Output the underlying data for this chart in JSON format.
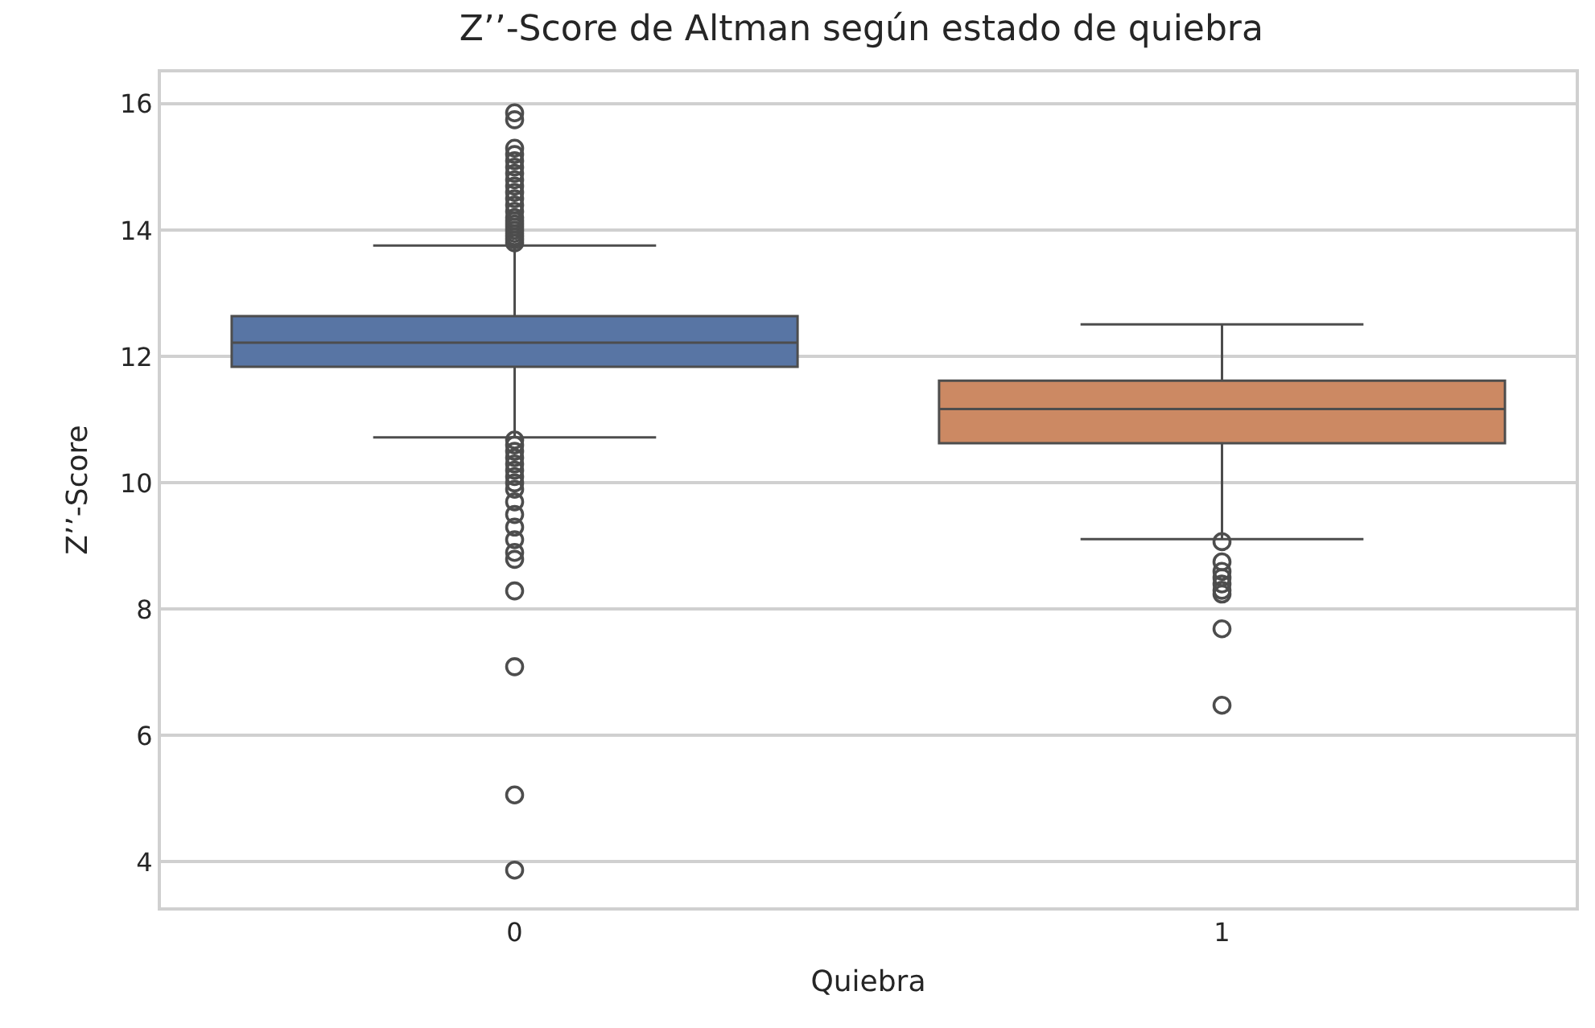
{
  "chart_data": {
    "type": "box",
    "title": "Z’’-Score de Altman según estado de quiebra",
    "xlabel": "Quiebra",
    "ylabel": "Z’’-Score",
    "categories": [
      "0",
      "1"
    ],
    "series": [
      {
        "color": "#5875a4",
        "boxes": [
          {
            "low": 10.72,
            "q1": 11.84,
            "median": 12.22,
            "q3": 12.64,
            "high": 13.76,
            "outliers": [
              13.8,
              13.85,
              13.9,
              13.95,
              14.0,
              14.05,
              14.1,
              14.15,
              14.2,
              14.3,
              14.4,
              14.5,
              14.6,
              14.7,
              14.8,
              14.9,
              15.0,
              15.1,
              15.2,
              15.3,
              15.75,
              15.86,
              10.68,
              10.6,
              10.5,
              10.4,
              10.3,
              10.2,
              10.1,
              10.0,
              9.9,
              9.7,
              9.5,
              9.3,
              9.1,
              8.9,
              8.79,
              8.29,
              7.09,
              5.06,
              3.87
            ]
          },
          null
        ]
      },
      {
        "color": "#cc8963",
        "boxes": [
          null,
          {
            "low": 9.11,
            "q1": 10.63,
            "median": 11.17,
            "q3": 11.62,
            "high": 12.51,
            "outliers": [
              9.07,
              8.75,
              8.6,
              8.5,
              8.4,
              8.3,
              8.24,
              7.69,
              6.48
            ]
          }
        ]
      }
    ],
    "ylim": [
      3.28,
      16.5
    ],
    "yticks": [
      4,
      6,
      8,
      10,
      12,
      14,
      16
    ],
    "grid": "y"
  }
}
